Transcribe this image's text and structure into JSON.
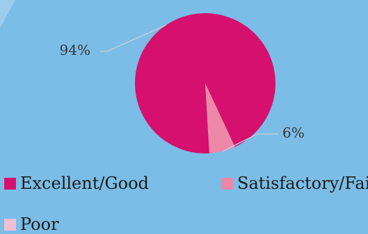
{
  "chart_data": {
    "type": "pie",
    "categories": [
      "Excellent/Good",
      "Satisfactory/Fair",
      "Poor"
    ],
    "values": [
      94,
      6,
      0
    ],
    "data_labels": [
      "94%",
      "6%",
      ""
    ],
    "colors": [
      "#d5106e",
      "#ee88a8",
      "#f2bfd2"
    ],
    "legend_position": "bottom",
    "title": ""
  },
  "background_color": "#7bbde6"
}
